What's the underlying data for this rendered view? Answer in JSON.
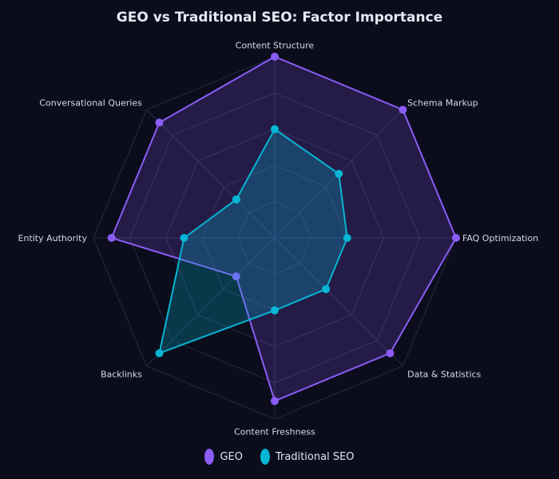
{
  "chart_data": {
    "type": "radar",
    "title": "GEO vs Traditional SEO: Factor Importance",
    "axes": [
      "Content Structure",
      "Schema Markup",
      "FAQ Optimization",
      "Data & Statistics",
      "Content Freshness",
      "Backlinks",
      "Entity Authority",
      "Conversational Queries"
    ],
    "range": [
      0,
      10
    ],
    "grid_levels": 5,
    "grid": true,
    "legend_position": "bottom",
    "series": [
      {
        "name": "GEO",
        "values": [
          10,
          10,
          10,
          9,
          9,
          3,
          9,
          9
        ],
        "color": "#8b5cf6"
      },
      {
        "name": "Traditional SEO",
        "values": [
          6,
          5,
          4,
          4,
          4,
          9,
          5,
          3
        ],
        "color": "#06b6d4"
      }
    ]
  }
}
